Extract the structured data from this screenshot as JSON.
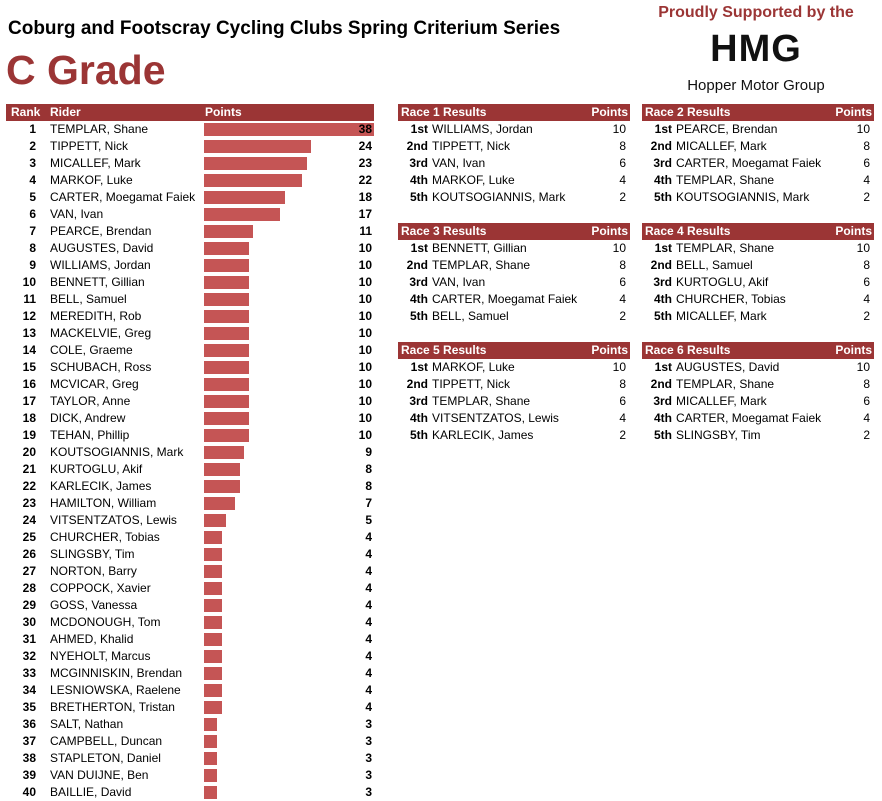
{
  "header": {
    "title": "Coburg and Footscray Cycling Clubs Spring Criterium Series",
    "grade": "C Grade"
  },
  "sponsor": {
    "line": "Proudly Supported by the",
    "logo": "HMG",
    "name": "Hopper Motor Group"
  },
  "standings": {
    "headers": {
      "rank": "Rank",
      "rider": "Rider",
      "points": "Points"
    },
    "max_points": 38,
    "rows": [
      {
        "rank": "1",
        "rider": "TEMPLAR, Shane",
        "points": 38
      },
      {
        "rank": "2",
        "rider": "TIPPETT, Nick",
        "points": 24
      },
      {
        "rank": "3",
        "rider": "MICALLEF, Mark",
        "points": 23
      },
      {
        "rank": "4",
        "rider": "MARKOF, Luke",
        "points": 22
      },
      {
        "rank": "5",
        "rider": "CARTER, Moegamat Faiek",
        "points": 18
      },
      {
        "rank": "6",
        "rider": "VAN, Ivan",
        "points": 17
      },
      {
        "rank": "7",
        "rider": "PEARCE, Brendan",
        "points": 11
      },
      {
        "rank": "8",
        "rider": "AUGUSTES, David",
        "points": 10
      },
      {
        "rank": "9",
        "rider": "WILLIAMS, Jordan",
        "points": 10
      },
      {
        "rank": "10",
        "rider": "BENNETT, Gillian",
        "points": 10
      },
      {
        "rank": "11",
        "rider": "BELL, Samuel",
        "points": 10
      },
      {
        "rank": "12",
        "rider": "MEREDITH, Rob",
        "points": 10
      },
      {
        "rank": "13",
        "rider": "MACKELVIE, Greg",
        "points": 10
      },
      {
        "rank": "14",
        "rider": "COLE, Graeme",
        "points": 10
      },
      {
        "rank": "15",
        "rider": "SCHUBACH, Ross",
        "points": 10
      },
      {
        "rank": "16",
        "rider": "MCVICAR, Greg",
        "points": 10
      },
      {
        "rank": "17",
        "rider": "TAYLOR, Anne",
        "points": 10
      },
      {
        "rank": "18",
        "rider": "DICK, Andrew",
        "points": 10
      },
      {
        "rank": "19",
        "rider": "TEHAN, Phillip",
        "points": 10
      },
      {
        "rank": "20",
        "rider": "KOUTSOGIANNIS, Mark",
        "points": 9
      },
      {
        "rank": "21",
        "rider": "KURTOGLU, Akif",
        "points": 8
      },
      {
        "rank": "22",
        "rider": "KARLECIK, James",
        "points": 8
      },
      {
        "rank": "23",
        "rider": "HAMILTON, William",
        "points": 7
      },
      {
        "rank": "24",
        "rider": "VITSENTZATOS, Lewis",
        "points": 5
      },
      {
        "rank": "25",
        "rider": "CHURCHER, Tobias",
        "points": 4
      },
      {
        "rank": "26",
        "rider": "SLINGSBY, Tim",
        "points": 4
      },
      {
        "rank": "27",
        "rider": "NORTON, Barry",
        "points": 4
      },
      {
        "rank": "28",
        "rider": "COPPOCK, Xavier",
        "points": 4
      },
      {
        "rank": "29",
        "rider": "GOSS, Vanessa",
        "points": 4
      },
      {
        "rank": "30",
        "rider": "MCDONOUGH, Tom",
        "points": 4
      },
      {
        "rank": "31",
        "rider": "AHMED, Khalid",
        "points": 4
      },
      {
        "rank": "32",
        "rider": "NYEHOLT, Marcus",
        "points": 4
      },
      {
        "rank": "33",
        "rider": "MCGINNISKIN, Brendan",
        "points": 4
      },
      {
        "rank": "34",
        "rider": "LESNIOWSKA, Raelene",
        "points": 4
      },
      {
        "rank": "35",
        "rider": "BRETHERTON, Tristan",
        "points": 4
      },
      {
        "rank": "36",
        "rider": "SALT, Nathan",
        "points": 3
      },
      {
        "rank": "37",
        "rider": "CAMPBELL, Duncan",
        "points": 3
      },
      {
        "rank": "38",
        "rider": "STAPLETON, Daniel",
        "points": 3
      },
      {
        "rank": "39",
        "rider": "VAN DUIJNE, Ben",
        "points": 3
      },
      {
        "rank": "40",
        "rider": "BAILLIE, David",
        "points": 3
      }
    ]
  },
  "races": [
    {
      "title": "Race 1 Results",
      "points_label": "Points",
      "results": [
        {
          "pos": "1st",
          "name": "WILLIAMS, Jordan",
          "points": "10"
        },
        {
          "pos": "2nd",
          "name": "TIPPETT, Nick",
          "points": "8"
        },
        {
          "pos": "3rd",
          "name": "VAN, Ivan",
          "points": "6"
        },
        {
          "pos": "4th",
          "name": "MARKOF, Luke",
          "points": "4"
        },
        {
          "pos": "5th",
          "name": "KOUTSOGIANNIS, Mark",
          "points": "2"
        }
      ]
    },
    {
      "title": "Race 2 Results",
      "points_label": "Points",
      "results": [
        {
          "pos": "1st",
          "name": "PEARCE, Brendan",
          "points": "10"
        },
        {
          "pos": "2nd",
          "name": "MICALLEF, Mark",
          "points": "8"
        },
        {
          "pos": "3rd",
          "name": "CARTER, Moegamat Faiek",
          "points": "6"
        },
        {
          "pos": "4th",
          "name": "TEMPLAR, Shane",
          "points": "4"
        },
        {
          "pos": "5th",
          "name": "KOUTSOGIANNIS, Mark",
          "points": "2"
        }
      ]
    },
    {
      "title": "Race 3 Results",
      "points_label": "Points",
      "results": [
        {
          "pos": "1st",
          "name": "BENNETT, Gillian",
          "points": "10"
        },
        {
          "pos": "2nd",
          "name": "TEMPLAR, Shane",
          "points": "8"
        },
        {
          "pos": "3rd",
          "name": "VAN, Ivan",
          "points": "6"
        },
        {
          "pos": "4th",
          "name": "CARTER, Moegamat Faiek",
          "points": "4"
        },
        {
          "pos": "5th",
          "name": "BELL, Samuel",
          "points": "2"
        }
      ]
    },
    {
      "title": "Race 4 Results",
      "points_label": "Points",
      "results": [
        {
          "pos": "1st",
          "name": "TEMPLAR, Shane",
          "points": "10"
        },
        {
          "pos": "2nd",
          "name": "BELL, Samuel",
          "points": "8"
        },
        {
          "pos": "3rd",
          "name": "KURTOGLU, Akif",
          "points": "6"
        },
        {
          "pos": "4th",
          "name": "CHURCHER, Tobias",
          "points": "4"
        },
        {
          "pos": "5th",
          "name": "MICALLEF, Mark",
          "points": "2"
        }
      ]
    },
    {
      "title": "Race 5 Results",
      "points_label": "Points",
      "results": [
        {
          "pos": "1st",
          "name": "MARKOF, Luke",
          "points": "10"
        },
        {
          "pos": "2nd",
          "name": "TIPPETT, Nick",
          "points": "8"
        },
        {
          "pos": "3rd",
          "name": "TEMPLAR, Shane",
          "points": "6"
        },
        {
          "pos": "4th",
          "name": "VITSENTZATOS, Lewis",
          "points": "4"
        },
        {
          "pos": "5th",
          "name": "KARLECIK, James",
          "points": "2"
        }
      ]
    },
    {
      "title": "Race 6 Results",
      "points_label": "Points",
      "results": [
        {
          "pos": "1st",
          "name": "AUGUSTES, David",
          "points": "10"
        },
        {
          "pos": "2nd",
          "name": "TEMPLAR, Shane",
          "points": "8"
        },
        {
          "pos": "3rd",
          "name": "MICALLEF, Mark",
          "points": "6"
        },
        {
          "pos": "4th",
          "name": "CARTER, Moegamat Faiek",
          "points": "4"
        },
        {
          "pos": "5th",
          "name": "SLINGSBY, Tim",
          "points": "2"
        }
      ]
    }
  ],
  "colors": {
    "accent": "#9b3535",
    "bar": "#c55555"
  }
}
